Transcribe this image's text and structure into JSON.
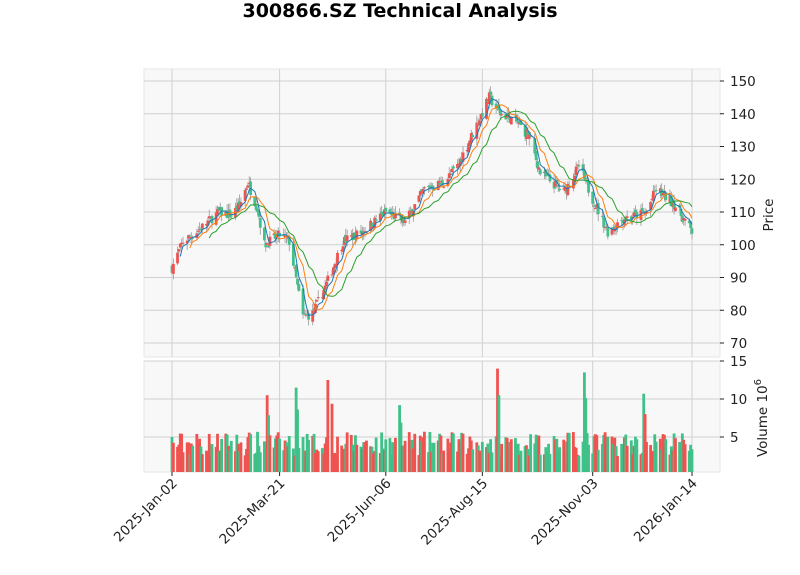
{
  "title": "300866.SZ Technical Analysis",
  "colors": {
    "up": "#ef5350",
    "down": "#3fc189",
    "wick": "#999999",
    "ma_short": "#1f77b4",
    "ma_mid": "#ff7f0e",
    "ma_long": "#2ca02c",
    "panel_bg": "#f8f8f8",
    "grid": "#d0d0d0"
  },
  "chart_data": {
    "type": "candlestick",
    "title": "300866.SZ Technical Analysis",
    "panels": [
      {
        "name": "price",
        "ylabel": "Price",
        "ylim": [
          68,
          153
        ],
        "yticks": [
          70,
          80,
          90,
          100,
          110,
          120,
          130,
          140,
          150
        ],
        "grid": true
      },
      {
        "name": "volume",
        "ylabel": "Volume  10^6",
        "ylim": [
          0,
          15
        ],
        "yticks": [
          5,
          10,
          15
        ],
        "grid": true
      }
    ],
    "xticks": [
      "2025-Jan-02",
      "2025-Mar-21",
      "2025-Jun-06",
      "2025-Aug-15",
      "2025-Nov-03",
      "2026-Jan-14"
    ],
    "moving_averages": [
      "MA short (blue)",
      "MA mid (orange)",
      "MA long (green)"
    ],
    "price_keypoints": [
      {
        "date": "2025-Jan-02",
        "close": 93
      },
      {
        "date": "2025-Jan-10",
        "close": 101
      },
      {
        "date": "2025-Jan-20",
        "close": 104
      },
      {
        "date": "2025-Feb-05",
        "close": 110
      },
      {
        "date": "2025-Feb-14",
        "close": 109
      },
      {
        "date": "2025-Feb-20",
        "close": 112
      },
      {
        "date": "2025-Feb-26",
        "close": 119
      },
      {
        "date": "2025-Mar-05",
        "close": 111
      },
      {
        "date": "2025-Mar-10",
        "close": 100
      },
      {
        "date": "2025-Mar-21",
        "close": 103
      },
      {
        "date": "2025-Mar-28",
        "close": 101
      },
      {
        "date": "2025-Apr-07",
        "close": 78
      },
      {
        "date": "2025-Apr-14",
        "close": 79
      },
      {
        "date": "2025-Apr-24",
        "close": 88
      },
      {
        "date": "2025-May-06",
        "close": 101
      },
      {
        "date": "2025-May-20",
        "close": 104
      },
      {
        "date": "2025-Jun-06",
        "close": 110
      },
      {
        "date": "2025-Jun-20",
        "close": 107
      },
      {
        "date": "2025-Jul-04",
        "close": 117
      },
      {
        "date": "2025-Jul-18",
        "close": 119
      },
      {
        "date": "2025-Jul-28",
        "close": 124
      },
      {
        "date": "2025-Aug-08",
        "close": 134
      },
      {
        "date": "2025-Aug-20",
        "close": 145
      },
      {
        "date": "2025-Aug-28",
        "close": 140
      },
      {
        "date": "2025-Sep-08",
        "close": 138
      },
      {
        "date": "2025-Sep-18",
        "close": 133
      },
      {
        "date": "2025-Sep-26",
        "close": 122
      },
      {
        "date": "2025-Oct-13",
        "close": 116
      },
      {
        "date": "2025-Oct-24",
        "close": 124
      },
      {
        "date": "2025-Nov-03",
        "close": 114
      },
      {
        "date": "2025-Nov-14",
        "close": 104
      },
      {
        "date": "2025-Nov-25",
        "close": 108
      },
      {
        "date": "2025-Dec-05",
        "close": 109
      },
      {
        "date": "2025-Dec-12",
        "close": 110
      },
      {
        "date": "2025-Dec-19",
        "close": 117
      },
      {
        "date": "2025-Dec-31",
        "close": 113
      },
      {
        "date": "2026-Jan-14",
        "close": 104
      }
    ],
    "volume_notes": "Volume mostly 2-6 x10^6; spikes: ~10.5 (mid-Mar), ~11.5 (early Apr), ~12.5 (late Apr), ~14 (late Aug), ~13.5 (late Oct), ~10.7 (Dec)",
    "volume_keypoints": [
      {
        "date": "2025-Jan-02",
        "volume": 5.0
      },
      {
        "date": "2025-Mar-12",
        "volume": 10.5
      },
      {
        "date": "2025-Apr-02",
        "volume": 11.5
      },
      {
        "date": "2025-Apr-25",
        "volume": 12.5
      },
      {
        "date": "2025-Jun-16",
        "volume": 9.2
      },
      {
        "date": "2025-Aug-26",
        "volume": 14.0
      },
      {
        "date": "2025-Oct-28",
        "volume": 13.5
      },
      {
        "date": "2025-Dec-10",
        "volume": 10.7
      }
    ]
  }
}
